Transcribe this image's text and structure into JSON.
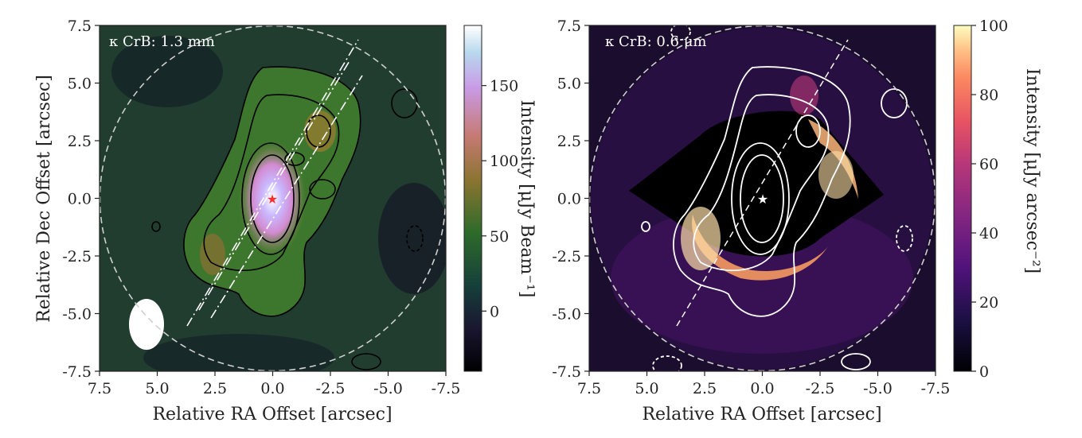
{
  "chart_data": [
    {
      "type": "heatmap",
      "inset_label": "κ CrB: 1.3 mm",
      "xlabel": "Relative RA Offset [arcsec]",
      "ylabel": "Relative Dec Offset [arcsec]",
      "xlim": [
        7.5,
        -7.5
      ],
      "ylim": [
        -7.5,
        7.5
      ],
      "xticks": [
        "7.5",
        "5.0",
        "2.5",
        "0.0",
        "-2.5",
        "-5.0",
        "-7.5"
      ],
      "yticks": [
        "7.5",
        "5.0",
        "2.5",
        "0.0",
        "-2.5",
        "-5.0",
        "-7.5"
      ],
      "colorbar": {
        "label": "Intensity [μJy Beam⁻¹]",
        "ticks": [
          "150",
          "100",
          "50",
          "0"
        ],
        "tick_values": [
          150,
          100,
          50,
          0
        ],
        "range": [
          -40,
          190
        ],
        "colormap": "cubehelix"
      },
      "star": {
        "x": 0,
        "y": 0,
        "color": "#ff2a2a"
      },
      "beam": {
        "x": 5.5,
        "y": -5.5,
        "major": 2.3,
        "minor": 1.5
      },
      "grid": false
    },
    {
      "type": "heatmap",
      "inset_label": "κ CrB: 0.6 μm",
      "xlabel": "Relative RA Offset [arcsec]",
      "ylabel": "",
      "xlim": [
        7.5,
        -7.5
      ],
      "ylim": [
        -7.5,
        7.5
      ],
      "xticks": [
        "7.5",
        "5.0",
        "2.5",
        "0.0",
        "-2.5",
        "-5.0",
        "-7.5"
      ],
      "yticks": [
        "7.5",
        "5.0",
        "2.5",
        "0.0",
        "-2.5",
        "-5.0",
        "-7.5"
      ],
      "colorbar": {
        "label": "Intensity [μJy arcsec⁻²]",
        "ticks": [
          "100",
          "80",
          "60",
          "40",
          "20",
          "0"
        ],
        "tick_values": [
          100,
          80,
          60,
          40,
          20,
          0
        ],
        "range": [
          0,
          100
        ],
        "colormap": "magma"
      },
      "star": {
        "x": 0,
        "y": 0,
        "color": "#ffffff"
      },
      "grid": false
    }
  ]
}
